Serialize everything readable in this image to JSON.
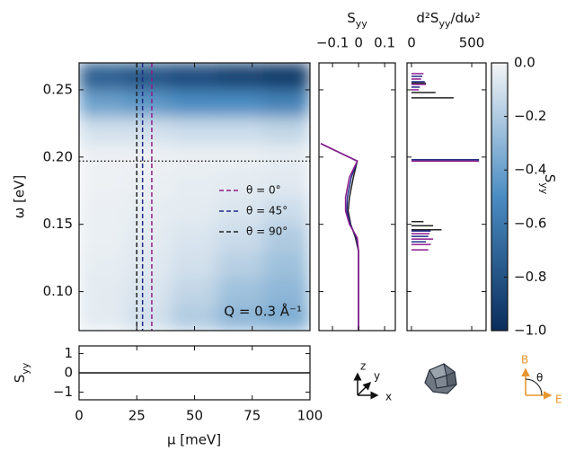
{
  "chart_data": [
    {
      "type": "heatmap",
      "ylabel": "ω [eV]",
      "annotation": "Q = 0.3 Å⁻¹",
      "xlim": [
        0,
        100
      ],
      "xticks": [
        0,
        25,
        50,
        75,
        100
      ],
      "ylim": [
        0.071,
        0.27
      ],
      "yticks": [
        {
          "value": 0.1,
          "label": "0.10"
        },
        0.15,
        {
          "value": 0.2,
          "label": "0.20"
        },
        0.25
      ],
      "x_edges": [
        0,
        20,
        40,
        60,
        80,
        100
      ],
      "y_edges": [
        0.071,
        0.09,
        0.11,
        0.13,
        0.15,
        0.17,
        0.19,
        0.21,
        0.23,
        0.25,
        0.27
      ],
      "z": [
        [
          -0.05,
          -0.1,
          -0.2,
          -0.3,
          -0.35
        ],
        [
          -0.05,
          -0.08,
          -0.15,
          -0.25,
          -0.3
        ],
        [
          -0.04,
          -0.06,
          -0.1,
          -0.18,
          -0.25
        ],
        [
          -0.03,
          -0.05,
          -0.08,
          -0.12,
          -0.2
        ],
        [
          -0.03,
          -0.04,
          -0.05,
          -0.08,
          -0.12
        ],
        [
          -0.02,
          -0.03,
          -0.04,
          -0.05,
          -0.06
        ],
        [
          -0.02,
          -0.02,
          -0.03,
          -0.03,
          -0.04
        ],
        [
          -0.1,
          -0.1,
          -0.12,
          -0.12,
          -0.15
        ],
        [
          -0.4,
          -0.45,
          -0.5,
          -0.5,
          -0.55
        ],
        [
          -0.75,
          -0.8,
          -0.85,
          -0.9,
          -0.95
        ]
      ],
      "colormap": [
        "#0b2d5c",
        "#4a8cc2",
        "#f4f5f6"
      ],
      "clim": [
        -1,
        0
      ],
      "colorbar": {
        "label": [
          {
            "text": "S"
          },
          {
            "text": "yy",
            "sub": true
          }
        ],
        "ticks": [
          {
            "value": 0,
            "label": "0.0"
          },
          {
            "value": -0.2,
            "label": "−0.2"
          },
          {
            "value": -0.4,
            "label": "−0.4"
          },
          {
            "value": -0.6,
            "label": "−0.6"
          },
          {
            "value": -0.8,
            "label": "−0.8"
          },
          {
            "value": -1,
            "label": "−1.0"
          }
        ]
      },
      "vlines": [
        {
          "name": "θ = 0°",
          "color": "#8e1b8e",
          "x": 31.5
        },
        {
          "name": "θ = 45°",
          "color": "#1f2a8a",
          "x": 27.5
        },
        {
          "name": "θ = 90°",
          "color": "#222222",
          "x": 25
        }
      ],
      "hline": {
        "y": 0.197,
        "color": "#111111"
      }
    },
    {
      "type": "line",
      "xlabel": "μ [meV]",
      "ylabel": [
        {
          "text": "S"
        },
        {
          "text": "yy",
          "sub": true
        }
      ],
      "xlim": [
        0,
        100
      ],
      "xticks": [
        0,
        25,
        50,
        75,
        100
      ],
      "ylim": [
        -1.4,
        1.4
      ],
      "yticks": [
        1,
        0,
        {
          "value": -1,
          "label": "−1"
        }
      ],
      "x": [
        0,
        100
      ],
      "values": [
        0,
        0
      ],
      "color": "#111111"
    },
    {
      "type": "profile",
      "xlabel": [
        {
          "text": "S"
        },
        {
          "text": "yy",
          "sub": true
        }
      ],
      "xlim": [
        -0.152,
        0.141
      ],
      "xticks": [
        {
          "value": -0.1,
          "label": "−0.1"
        },
        0,
        0.1
      ],
      "ylim": [
        0.071,
        0.27
      ],
      "yticks": [
        0.1,
        0.15,
        0.2,
        0.25
      ],
      "omega": [
        0.21,
        0.197,
        0.185,
        0.17,
        0.16,
        0.15,
        0.14,
        0.13,
        0.071
      ],
      "series": [
        {
          "color": "#222222",
          "values": [
            -0.145,
            -0.005,
            -0.02,
            -0.035,
            -0.04,
            -0.03,
            -0.012,
            0,
            0
          ]
        },
        {
          "color": "#1f2a8a",
          "values": [
            -0.145,
            -0.005,
            -0.028,
            -0.043,
            -0.045,
            -0.032,
            -0.008,
            0,
            0
          ]
        },
        {
          "color": "#8e1b8e",
          "values": [
            -0.145,
            -0.005,
            -0.035,
            -0.05,
            -0.05,
            -0.035,
            -0.005,
            0,
            0
          ]
        }
      ]
    },
    {
      "type": "spikes",
      "xlabel": [
        {
          "text": "d²S"
        },
        {
          "text": "yy",
          "sub": true
        },
        {
          "text": "/dω²"
        }
      ],
      "xlim": [
        -37,
        619
      ],
      "xticks": [
        0,
        500
      ],
      "ylim": [
        0.071,
        0.27
      ],
      "yticks": [
        0.1,
        0.15,
        0.2,
        0.25
      ],
      "series": [
        {
          "color": "#222222",
          "omega": [
            0.255,
            0.248,
            0.244,
            0.198,
            0.152,
            0.149,
            0.146
          ],
          "values": [
            120,
            200,
            350,
            560,
            100,
            180,
            250
          ]
        },
        {
          "color": "#1f2a8a",
          "omega": [
            0.26,
            0.256,
            0.252,
            0.198,
            0.145,
            0.141,
            0.137
          ],
          "values": [
            90,
            110,
            70,
            560,
            160,
            140,
            120
          ]
        },
        {
          "color": "#8e1b8e",
          "omega": [
            0.262,
            0.258,
            0.254,
            0.25,
            0.197,
            0.143,
            0.139,
            0.135,
            0.131
          ],
          "values": [
            100,
            80,
            120,
            60,
            560,
            150,
            180,
            160,
            140
          ]
        }
      ]
    }
  ],
  "icons": {
    "axes": [
      "z",
      "y",
      "x"
    ],
    "field": [
      "B",
      "θ",
      "E"
    ]
  }
}
